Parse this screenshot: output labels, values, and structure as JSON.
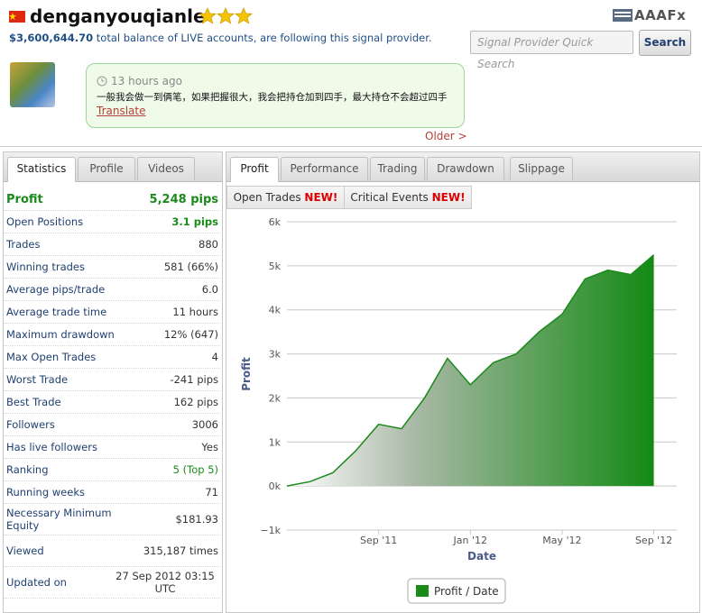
{
  "header": {
    "name": "denganyouqianle",
    "balance": "$3,600,644.70",
    "balance_text": "total balance of LIVE accounts, are following this signal provider.",
    "logo": "AAAFx",
    "search_placeholder": "Signal Provider Quick Search",
    "search_button": "Search"
  },
  "message": {
    "time": "13 hours ago",
    "text": "一般我会做一到俩笔，如果把握很大，我会把持仓加到四手，最大持仓不会超过四手",
    "translate": "Translate",
    "older": "Older >"
  },
  "left_tabs": [
    "Statistics",
    "Profile",
    "Videos"
  ],
  "stats": [
    [
      "Profit",
      "5,248 pips"
    ],
    [
      "Open Positions",
      "3.1 pips"
    ],
    [
      "Trades",
      "880"
    ],
    [
      "Winning trades",
      "581 (66%)"
    ],
    [
      "Average pips/trade",
      "6.0"
    ],
    [
      "Average trade time",
      "11 hours"
    ],
    [
      "Maximum drawdown",
      "12% (647)"
    ],
    [
      "Max Open Trades",
      "4"
    ],
    [
      "Worst Trade",
      "-241 pips"
    ],
    [
      "Best Trade",
      "162 pips"
    ],
    [
      "Followers",
      "3006"
    ],
    [
      "Has live followers",
      "Yes"
    ],
    [
      "Ranking",
      "5 (Top 5)"
    ],
    [
      "Running weeks",
      "71"
    ],
    [
      "Necessary Minimum Equity",
      "$181.93"
    ],
    [
      "Viewed",
      "315,187 times"
    ],
    [
      "Updated on",
      "27 Sep 2012 03:15 UTC"
    ]
  ],
  "right_tabs": [
    "Profit",
    "Performance",
    "Trading",
    "Drawdown",
    "Slippage"
  ],
  "sub_tabs": [
    {
      "label": "Open Trades",
      "badge": "NEW!"
    },
    {
      "label": "Critical Events",
      "badge": "NEW!"
    }
  ],
  "chart_data": {
    "type": "area",
    "x_label": "Date",
    "y_label": "Profit",
    "x": [
      "2011-05",
      "2011-06",
      "2011-07",
      "2011-08",
      "2011-09",
      "2011-10",
      "2011-11",
      "2011-12",
      "2012-01",
      "2012-02",
      "2012-03",
      "2012-04",
      "2012-05",
      "2012-06",
      "2012-07",
      "2012-08",
      "2012-09"
    ],
    "series": [
      {
        "name": "Profit / Date",
        "color": "#1a8a1a",
        "values": [
          0,
          100,
          300,
          800,
          1400,
          1300,
          2000,
          2900,
          2300,
          2800,
          3000,
          3500,
          3900,
          4700,
          4900,
          4800,
          5248
        ]
      }
    ],
    "xlim": [
      "2011-05",
      "2012-10"
    ],
    "xticks": [
      {
        "value": "2011-09",
        "label": "Sep '11"
      },
      {
        "value": "2012-01",
        "label": "Jan '12"
      },
      {
        "value": "2012-05",
        "label": "May '12"
      },
      {
        "value": "2012-09",
        "label": "Sep '12"
      }
    ],
    "ylim": [
      -1000,
      6000
    ],
    "yticks": [
      {
        "value": -1000,
        "label": "−1k"
      },
      {
        "value": 0,
        "label": "0k"
      },
      {
        "value": 1000,
        "label": "1k"
      },
      {
        "value": 2000,
        "label": "2k"
      },
      {
        "value": 3000,
        "label": "3k"
      },
      {
        "value": 4000,
        "label": "4k"
      },
      {
        "value": 5000,
        "label": "5k"
      },
      {
        "value": 6000,
        "label": "6k"
      }
    ],
    "grid": true,
    "legend": "bottom"
  }
}
